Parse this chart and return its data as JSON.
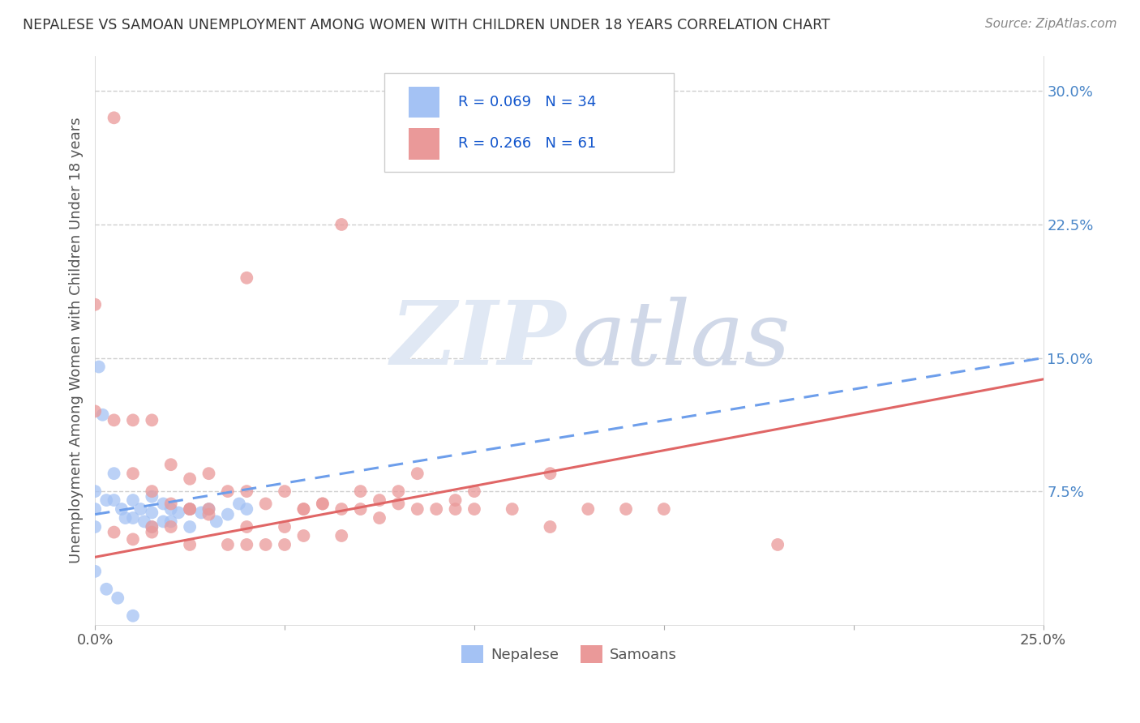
{
  "title": "NEPALESE VS SAMOAN UNEMPLOYMENT AMONG WOMEN WITH CHILDREN UNDER 18 YEARS CORRELATION CHART",
  "source": "Source: ZipAtlas.com",
  "ylabel": "Unemployment Among Women with Children Under 18 years",
  "xlim": [
    0.0,
    0.25
  ],
  "ylim": [
    0.0,
    0.32
  ],
  "ytick_vals": [
    0.0,
    0.075,
    0.15,
    0.225,
    0.3
  ],
  "ytick_labels": [
    "",
    "7.5%",
    "15.0%",
    "22.5%",
    "30.0%"
  ],
  "xtick_vals": [
    0.0,
    0.05,
    0.1,
    0.15,
    0.2,
    0.25
  ],
  "xtick_labels": [
    "0.0%",
    "",
    "",
    "",
    "",
    "25.0%"
  ],
  "nepalese_R": 0.069,
  "nepalese_N": 34,
  "samoan_R": 0.266,
  "samoan_N": 61,
  "nepalese_color": "#a4c2f4",
  "samoan_color": "#ea9999",
  "trend_nepalese_color": "#6d9eeb",
  "trend_samoan_color": "#e06666",
  "legend_text_color": "#1155cc",
  "watermark_zip_color": "#e0e8f4",
  "watermark_atlas_color": "#d0d8e8",
  "background_color": "#ffffff",
  "grid_color": "#d0d0d0",
  "title_color": "#333333",
  "source_color": "#888888",
  "ylabel_color": "#555555",
  "ytick_color": "#4a86c8",
  "nepalese_x": [
    0.001,
    0.002,
    0.0,
    0.0,
    0.0,
    0.003,
    0.005,
    0.005,
    0.007,
    0.008,
    0.01,
    0.01,
    0.012,
    0.013,
    0.015,
    0.015,
    0.015,
    0.018,
    0.018,
    0.02,
    0.02,
    0.022,
    0.025,
    0.025,
    0.028,
    0.03,
    0.032,
    0.035,
    0.038,
    0.04,
    0.0,
    0.003,
    0.006,
    0.01
  ],
  "nepalese_y": [
    0.145,
    0.118,
    0.075,
    0.065,
    0.055,
    0.07,
    0.085,
    0.07,
    0.065,
    0.06,
    0.07,
    0.06,
    0.065,
    0.058,
    0.072,
    0.063,
    0.055,
    0.068,
    0.058,
    0.065,
    0.058,
    0.063,
    0.065,
    0.055,
    0.063,
    0.065,
    0.058,
    0.062,
    0.068,
    0.065,
    0.03,
    0.02,
    0.015,
    0.005
  ],
  "samoan_x": [
    0.005,
    0.065,
    0.04,
    0.0,
    0.0,
    0.005,
    0.01,
    0.01,
    0.015,
    0.015,
    0.02,
    0.02,
    0.025,
    0.025,
    0.03,
    0.03,
    0.035,
    0.04,
    0.04,
    0.045,
    0.05,
    0.05,
    0.055,
    0.06,
    0.065,
    0.07,
    0.075,
    0.08,
    0.085,
    0.09,
    0.095,
    0.1,
    0.11,
    0.12,
    0.13,
    0.14,
    0.015,
    0.02,
    0.025,
    0.03,
    0.04,
    0.05,
    0.055,
    0.06,
    0.07,
    0.08,
    0.1,
    0.12,
    0.15,
    0.18,
    0.005,
    0.01,
    0.015,
    0.025,
    0.035,
    0.045,
    0.055,
    0.065,
    0.075,
    0.085,
    0.095
  ],
  "samoan_y": [
    0.285,
    0.225,
    0.195,
    0.12,
    0.18,
    0.115,
    0.115,
    0.085,
    0.115,
    0.075,
    0.09,
    0.068,
    0.082,
    0.065,
    0.085,
    0.062,
    0.075,
    0.075,
    0.055,
    0.068,
    0.075,
    0.055,
    0.065,
    0.068,
    0.065,
    0.065,
    0.07,
    0.068,
    0.065,
    0.065,
    0.07,
    0.065,
    0.065,
    0.085,
    0.065,
    0.065,
    0.055,
    0.055,
    0.065,
    0.065,
    0.045,
    0.045,
    0.065,
    0.068,
    0.075,
    0.075,
    0.075,
    0.055,
    0.065,
    0.045,
    0.052,
    0.048,
    0.052,
    0.045,
    0.045,
    0.045,
    0.05,
    0.05,
    0.06,
    0.085,
    0.065
  ],
  "trend_nep_x0": 0.0,
  "trend_nep_y0": 0.062,
  "trend_nep_x1": 0.25,
  "trend_nep_y1": 0.15,
  "trend_sam_x0": 0.0,
  "trend_sam_y0": 0.038,
  "trend_sam_x1": 0.25,
  "trend_sam_y1": 0.138
}
